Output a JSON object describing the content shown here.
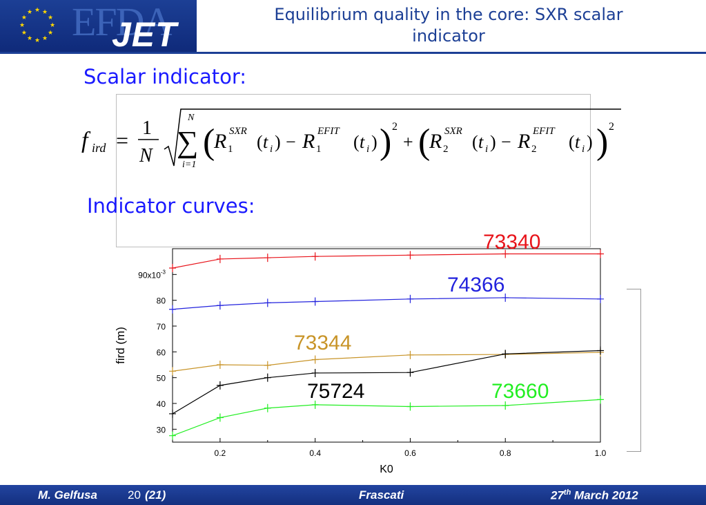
{
  "header": {
    "logo_top": "EFDA",
    "logo_bottom": "JET",
    "title_line1": "Equilibrium quality in the core: SXR scalar",
    "title_line2": "indicator"
  },
  "sections": {
    "scalar": "Scalar indicator:",
    "curves": "Indicator curves:"
  },
  "formula": {
    "lhs": "f",
    "lhs_sub": "ird",
    "one": "1",
    "N": "N",
    "sum_top": "N",
    "sum_bottom": "i=1",
    "sxr": "SXR",
    "efit": "EFIT",
    "sq": "2",
    "t": "t",
    "i": "i"
  },
  "chart_data": {
    "type": "line",
    "xlabel": "K0",
    "ylabel": "fird (m)",
    "xlim": [
      0.1,
      1.0
    ],
    "ylim": [
      25,
      100
    ],
    "x_ticks": [
      "0.2",
      "0.4",
      "0.6",
      "0.8",
      "1.0"
    ],
    "y_ticks": [
      "30",
      "40",
      "50",
      "60",
      "70",
      "80",
      "90x10-3"
    ],
    "y_scale_note": "x10-3",
    "x": [
      0.1,
      0.2,
      0.3,
      0.4,
      0.6,
      0.8,
      1.0
    ],
    "series": [
      {
        "name": "73340",
        "color": "#e8131a",
        "values": [
          92.5,
          96.0,
          96.5,
          97.0,
          97.5,
          98.0,
          98.0
        ]
      },
      {
        "name": "74366",
        "color": "#2222dd",
        "values": [
          76.5,
          78.0,
          79.0,
          79.5,
          80.5,
          81.0,
          80.5
        ]
      },
      {
        "name": "73344",
        "color": "#c89428",
        "values": [
          52.5,
          55.0,
          54.8,
          57.0,
          58.8,
          59.0,
          59.8
        ]
      },
      {
        "name": "75724",
        "color": "#000000",
        "values": [
          36.0,
          47.0,
          50.0,
          51.8,
          52.0,
          59.2,
          60.5
        ]
      },
      {
        "name": "73660",
        "color": "#22ee22",
        "values": [
          27.5,
          34.5,
          38.2,
          39.5,
          38.8,
          39.2,
          41.5
        ]
      }
    ]
  },
  "footer": {
    "author": "M. Gelfusa",
    "page": "20",
    "total": "(21)",
    "place": "Frascati",
    "date_day": "27",
    "date_sup": "th",
    "date_rest": "March 2012"
  }
}
